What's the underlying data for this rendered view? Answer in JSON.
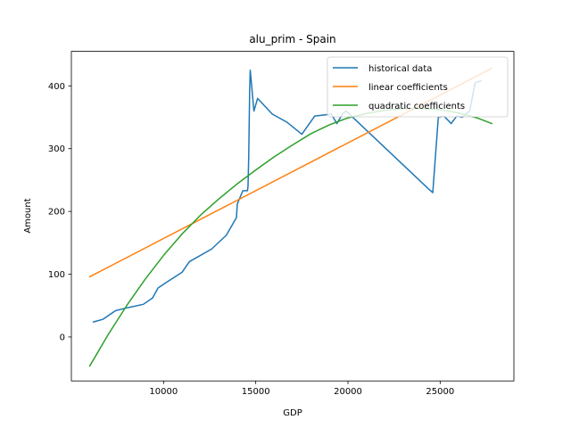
{
  "chart_data": {
    "type": "line",
    "title": "alu_prim - Spain",
    "xlabel": "GDP",
    "ylabel": "Amount",
    "xlim": [
      5000,
      29000
    ],
    "ylim": [
      -70,
      455
    ],
    "xticks": [
      10000,
      15000,
      20000,
      25000
    ],
    "yticks": [
      0,
      100,
      200,
      300,
      400
    ],
    "legend_position": "top-right",
    "grid": false,
    "series": [
      {
        "name": "historical data",
        "color": "#1f77b4",
        "x": [
          6200,
          6700,
          7400,
          8100,
          8900,
          9400,
          9700,
          10100,
          11000,
          11400,
          12600,
          13400,
          13950,
          14000,
          14300,
          14550,
          14580,
          14620,
          14670,
          14700,
          14900,
          15100,
          15900,
          16700,
          17500,
          18200,
          19100,
          19400,
          19700,
          19900,
          24400,
          24600,
          24900,
          25200,
          25600,
          25900,
          26200,
          26600,
          26900,
          27200
        ],
        "y": [
          24,
          28,
          42,
          47,
          52,
          62,
          78,
          86,
          103,
          120,
          140,
          162,
          190,
          212,
          233,
          233,
          240,
          290,
          395,
          425,
          360,
          380,
          355,
          342,
          323,
          352,
          355,
          340,
          355,
          360,
          235,
          230,
          350,
          352,
          340,
          352,
          350,
          360,
          405,
          408
        ]
      },
      {
        "name": "linear coefficients",
        "color": "#ff7f0e",
        "x": [
          6000,
          27800
        ],
        "y": [
          96,
          428
        ]
      },
      {
        "name": "quadratic coefficients",
        "color": "#2ca02c",
        "x": [
          6000,
          7000,
          8000,
          9000,
          10000,
          11000,
          12000,
          13000,
          14000,
          15000,
          16000,
          17000,
          18000,
          19000,
          20000,
          21000,
          22000,
          23000,
          24000,
          25000,
          26000,
          27000,
          27800
        ],
        "y": [
          -46,
          4,
          50,
          92,
          130,
          164,
          194,
          220,
          244,
          266,
          287,
          306,
          324,
          338,
          349,
          356,
          361,
          364,
          364,
          362,
          357,
          349,
          340
        ]
      }
    ]
  }
}
